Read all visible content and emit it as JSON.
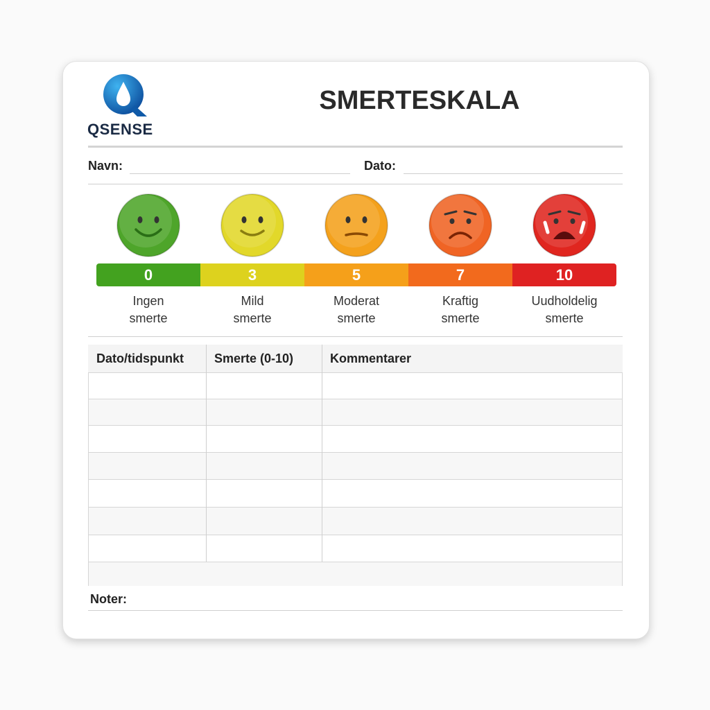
{
  "logo": {
    "text": "QSENSE"
  },
  "title": "SMERTESKALA",
  "fields": {
    "name": "Navn:",
    "date": "Dato:"
  },
  "scale": [
    {
      "value": "0",
      "label": [
        "Ingen",
        "smerte"
      ]
    },
    {
      "value": "3",
      "label": [
        "Mild",
        "smerte"
      ]
    },
    {
      "value": "5",
      "label": [
        "Moderat",
        "smerte"
      ]
    },
    {
      "value": "7",
      "label": [
        "Kraftig",
        "smerte"
      ]
    },
    {
      "value": "10",
      "label": [
        "Uudholdelig",
        "smerte"
      ]
    }
  ],
  "table": {
    "headers": [
      "Dato/tidspunkt",
      "Smerte (0-10)",
      "Kommentarer"
    ]
  },
  "notes": "Noter:"
}
